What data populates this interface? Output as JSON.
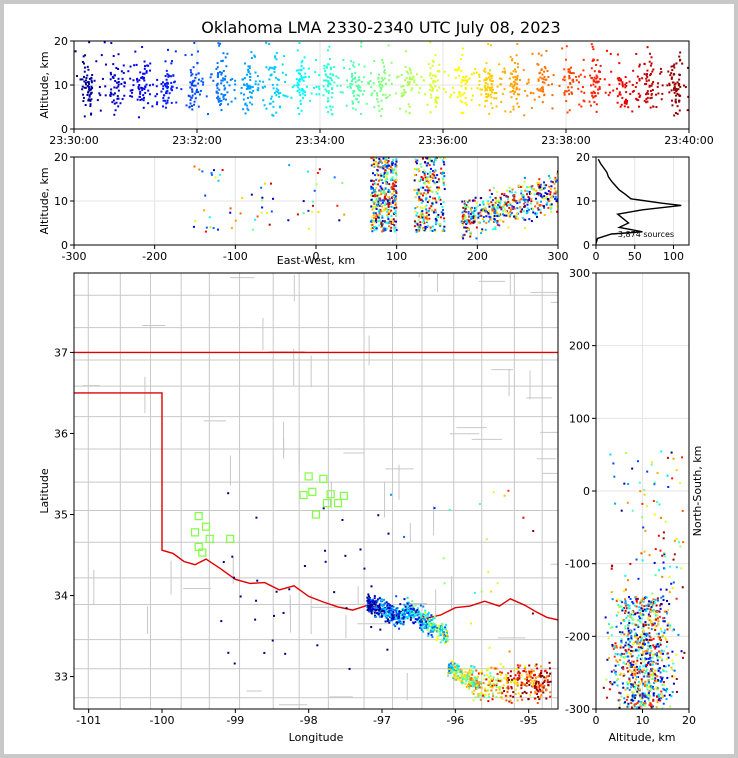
{
  "chart_data": [
    {
      "type": "scatter",
      "panel": "altitude-time",
      "title": "Oklahoma LMA 2330-2340 UTC July 08, 2023",
      "xlabel": "",
      "ylabel": "Altitude, km",
      "xlim": [
        "23:30:00",
        "23:40:00"
      ],
      "ylim": [
        0,
        20
      ],
      "x_ticks": [
        "23:30:00",
        "23:32:00",
        "23:34:00",
        "23:36:00",
        "23:38:00",
        "23:40:00"
      ],
      "y_ticks": [
        0,
        10,
        20
      ],
      "color_scale": "time (blue → red)",
      "altitude_band_km": [
        3,
        20
      ],
      "densest_altitude_km": [
        6,
        14
      ]
    },
    {
      "type": "scatter",
      "panel": "altitude-eastwest",
      "xlabel": "East-West, km",
      "ylabel": "Altitude, km",
      "xlim": [
        -300,
        300
      ],
      "ylim": [
        0,
        20
      ],
      "x_ticks": [
        -300,
        -200,
        -100,
        0,
        100,
        200,
        300
      ],
      "y_ticks": [
        0,
        10,
        20
      ],
      "clusters_km": [
        [
          68,
          100
        ],
        [
          120,
          160
        ],
        [
          180,
          300
        ]
      ]
    },
    {
      "type": "line",
      "panel": "altitude-histogram",
      "annotation": "3,874 sources",
      "xlim": [
        0,
        120
      ],
      "ylim": [
        0,
        20
      ],
      "x_ticks": [
        0,
        50,
        100
      ],
      "y_ticks": [
        0,
        10,
        20
      ],
      "profile": [
        {
          "alt": 0.3,
          "count": 0
        },
        {
          "alt": 1.5,
          "count": 2
        },
        {
          "alt": 2.5,
          "count": 20
        },
        {
          "alt": 3.0,
          "count": 60
        },
        {
          "alt": 3.5,
          "count": 45
        },
        {
          "alt": 4.0,
          "count": 30
        },
        {
          "alt": 5.0,
          "count": 42
        },
        {
          "alt": 6.0,
          "count": 35
        },
        {
          "alt": 7.0,
          "count": 28
        },
        {
          "alt": 8.0,
          "count": 60
        },
        {
          "alt": 9.0,
          "count": 110
        },
        {
          "alt": 9.5,
          "count": 85
        },
        {
          "alt": 10.5,
          "count": 45
        },
        {
          "alt": 11.5,
          "count": 38
        },
        {
          "alt": 12.5,
          "count": 30
        },
        {
          "alt": 13.5,
          "count": 25
        },
        {
          "alt": 14.5,
          "count": 20
        },
        {
          "alt": 15.5,
          "count": 16
        },
        {
          "alt": 16.5,
          "count": 14
        },
        {
          "alt": 17.5,
          "count": 10
        },
        {
          "alt": 18.5,
          "count": 6
        },
        {
          "alt": 19.5,
          "count": 3
        }
      ]
    },
    {
      "type": "scatter",
      "panel": "plan-view-map",
      "xlabel": "Longitude",
      "ylabel": "Latitude",
      "xlim": [
        -101.2,
        -94.6
      ],
      "ylim": [
        32.6,
        37.98
      ],
      "x_ticks": [
        -101,
        -100,
        -99,
        -98,
        -97,
        -96,
        -95
      ],
      "y_ticks": [
        33,
        34,
        35,
        36,
        37
      ],
      "state_border_color": "#e00000",
      "county_line_color": "#c8c8c8",
      "station_color": "#80ff40",
      "stations": [
        {
          "lon": -99.5,
          "lat": 34.98
        },
        {
          "lon": -99.4,
          "lat": 34.85
        },
        {
          "lon": -99.55,
          "lat": 34.78
        },
        {
          "lon": -99.35,
          "lat": 34.7
        },
        {
          "lon": -99.5,
          "lat": 34.6
        },
        {
          "lon": -99.45,
          "lat": 34.53
        },
        {
          "lon": -99.07,
          "lat": 34.7
        },
        {
          "lon": -98.0,
          "lat": 35.47
        },
        {
          "lon": -97.8,
          "lat": 35.44
        },
        {
          "lon": -97.95,
          "lat": 35.28
        },
        {
          "lon": -98.07,
          "lat": 35.24
        },
        {
          "lon": -97.7,
          "lat": 35.25
        },
        {
          "lon": -97.52,
          "lat": 35.23
        },
        {
          "lon": -97.75,
          "lat": 35.14
        },
        {
          "lon": -97.6,
          "lat": 35.14
        },
        {
          "lon": -97.9,
          "lat": 35.0
        }
      ]
    },
    {
      "type": "scatter",
      "panel": "northsouth-altitude",
      "xlabel": "Altitude, km",
      "ylabel": "North-South, km",
      "xlim": [
        0,
        20
      ],
      "ylim": [
        -300,
        300
      ],
      "x_ticks": [
        0,
        10,
        20
      ],
      "y_ticks": [
        -300,
        -200,
        -100,
        0,
        100,
        200,
        300
      ],
      "dense_northsouth_km": [
        -300,
        -150
      ]
    }
  ]
}
